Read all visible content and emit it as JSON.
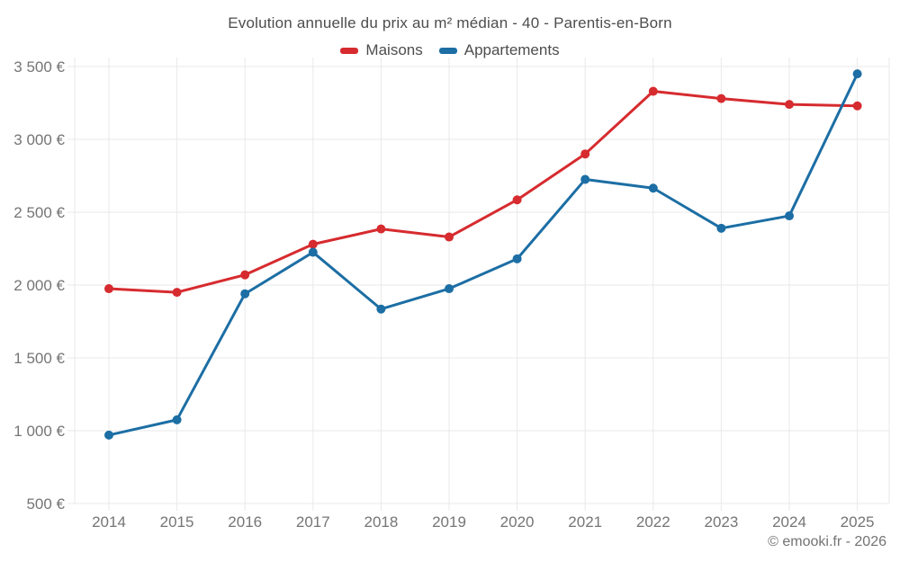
{
  "chart_data": {
    "type": "line",
    "title": "Evolution annuelle du prix au m² médian - 40 - Parentis-en-Born",
    "categories": [
      "2014",
      "2015",
      "2016",
      "2017",
      "2018",
      "2019",
      "2020",
      "2021",
      "2022",
      "2023",
      "2024",
      "2025"
    ],
    "series": [
      {
        "name": "Maisons",
        "color": "#d62b2f",
        "values": [
          1975,
          1950,
          2070,
          2280,
          2385,
          2330,
          2585,
          2900,
          3330,
          3280,
          3240,
          3230
        ]
      },
      {
        "name": "Appartements",
        "color": "#1c6ea4",
        "values": [
          970,
          1075,
          1940,
          2225,
          1835,
          1975,
          2180,
          2725,
          2665,
          2390,
          2475,
          3450
        ]
      }
    ],
    "yticks": {
      "values": [
        500,
        1000,
        1500,
        2000,
        2500,
        3000,
        3500
      ],
      "labels": [
        "500 €",
        "1 000 €",
        "1 500 €",
        "2 000 €",
        "2 500 €",
        "3 000 €",
        "3 500 €"
      ]
    },
    "ylim": [
      500,
      3500
    ],
    "grid": true,
    "legend_position": "top",
    "currency": "€"
  },
  "footer": {
    "copyright": "© emooki.fr - 2026"
  },
  "colors": {
    "background": "#ffffff",
    "grid": "#e9e9e9",
    "axis_text": "#757575",
    "title_text": "#4d4d4d",
    "footer_text": "#737373",
    "maisons": "#d62b2f",
    "appartements": "#1c6ea4"
  }
}
